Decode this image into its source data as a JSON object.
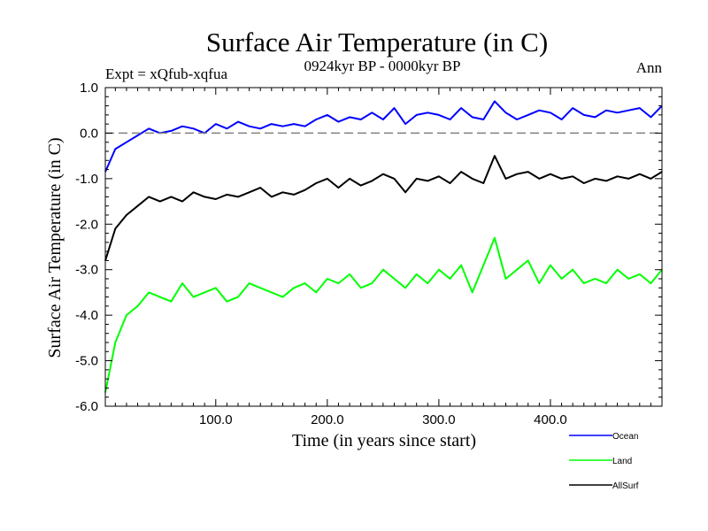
{
  "chart_data": {
    "type": "line",
    "title": "Surface Air Temperature (in C)",
    "subtitle": "0924kyr BP - 0000kyr BP",
    "experiment_label": "Expt = xQfub-xqfua",
    "season_label": "Ann",
    "xlabel": "Time (in years since start)",
    "ylabel": "Surface Air Temperature (in C)",
    "xlim": [
      1,
      500
    ],
    "ylim": [
      -6.0,
      1.0
    ],
    "x_ticks": [
      100,
      200,
      300,
      400
    ],
    "x_tick_labels": [
      "100.0",
      "200.0",
      "300.0",
      "400.0"
    ],
    "y_ticks": [
      1,
      0,
      -1,
      -2,
      -3,
      -4,
      -5,
      -6
    ],
    "y_tick_labels": [
      "1.0",
      "0.0",
      "-1.0",
      "-2.0",
      "-3.0",
      "-4.0",
      "-5.0",
      "-6.0"
    ],
    "reference_line": {
      "y": 0.0,
      "style": "dashed",
      "color": "#808080"
    },
    "legend_position": "bottom-right",
    "x": [
      1,
      10,
      20,
      30,
      40,
      50,
      60,
      70,
      80,
      90,
      100,
      110,
      120,
      130,
      140,
      150,
      160,
      170,
      180,
      190,
      200,
      210,
      220,
      230,
      240,
      250,
      260,
      270,
      280,
      290,
      300,
      310,
      320,
      330,
      340,
      350,
      360,
      370,
      380,
      390,
      400,
      410,
      420,
      430,
      440,
      450,
      460,
      470,
      480,
      490,
      500
    ],
    "series": [
      {
        "name": "Ocean",
        "color": "#0000ff",
        "values": [
          -0.85,
          -0.35,
          -0.2,
          -0.05,
          0.1,
          0.0,
          0.05,
          0.15,
          0.1,
          0.0,
          0.2,
          0.1,
          0.25,
          0.15,
          0.1,
          0.2,
          0.15,
          0.2,
          0.15,
          0.3,
          0.4,
          0.25,
          0.35,
          0.3,
          0.45,
          0.3,
          0.55,
          0.2,
          0.4,
          0.45,
          0.4,
          0.3,
          0.55,
          0.35,
          0.3,
          0.7,
          0.45,
          0.3,
          0.4,
          0.5,
          0.45,
          0.3,
          0.55,
          0.4,
          0.35,
          0.5,
          0.45,
          0.5,
          0.55,
          0.35,
          0.6
        ]
      },
      {
        "name": "Land",
        "color": "#00ff00",
        "values": [
          -5.7,
          -4.6,
          -4.0,
          -3.8,
          -3.5,
          -3.6,
          -3.7,
          -3.3,
          -3.6,
          -3.5,
          -3.4,
          -3.7,
          -3.6,
          -3.3,
          -3.4,
          -3.5,
          -3.6,
          -3.4,
          -3.3,
          -3.5,
          -3.2,
          -3.3,
          -3.1,
          -3.4,
          -3.3,
          -3.0,
          -3.2,
          -3.4,
          -3.1,
          -3.3,
          -3.0,
          -3.2,
          -2.9,
          -3.5,
          -2.9,
          -2.3,
          -3.2,
          -3.0,
          -2.8,
          -3.3,
          -2.9,
          -3.2,
          -3.0,
          -3.3,
          -3.2,
          -3.3,
          -3.0,
          -3.2,
          -3.1,
          -3.3,
          -3.0
        ]
      },
      {
        "name": "AllSurf",
        "color": "#000000",
        "values": [
          -2.8,
          -2.1,
          -1.8,
          -1.6,
          -1.4,
          -1.5,
          -1.4,
          -1.5,
          -1.3,
          -1.4,
          -1.45,
          -1.35,
          -1.4,
          -1.3,
          -1.2,
          -1.4,
          -1.3,
          -1.35,
          -1.25,
          -1.1,
          -1.0,
          -1.2,
          -1.0,
          -1.15,
          -1.05,
          -0.9,
          -1.0,
          -1.3,
          -1.0,
          -1.05,
          -0.95,
          -1.1,
          -0.85,
          -1.0,
          -1.1,
          -0.5,
          -1.0,
          -0.9,
          -0.85,
          -1.0,
          -0.9,
          -1.0,
          -0.95,
          -1.1,
          -1.0,
          -1.05,
          -0.95,
          -1.0,
          -0.9,
          -1.0,
          -0.85
        ]
      }
    ]
  }
}
